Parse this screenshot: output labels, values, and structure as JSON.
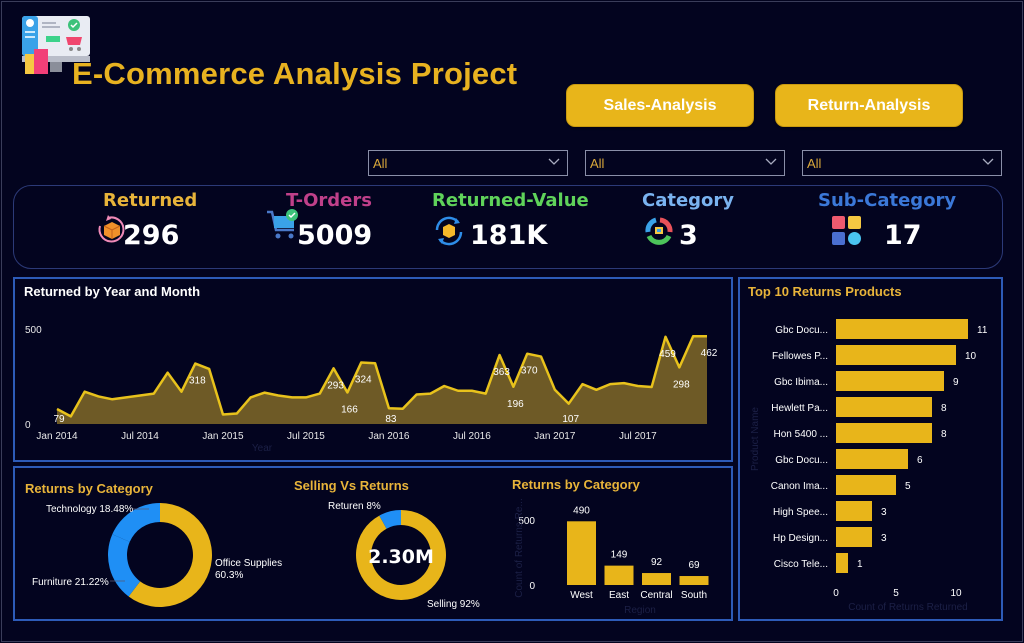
{
  "header": {
    "title": "E-Commerce Analysis Project",
    "logo_icon": "ecommerce-shop-icon"
  },
  "nav": {
    "sales_label": "Sales-Analysis",
    "return_label": "Return-Analysis"
  },
  "slicers": [
    {
      "value": "All",
      "icon": "chevron-down-icon"
    },
    {
      "value": "All",
      "icon": "chevron-down-icon"
    },
    {
      "value": "All",
      "icon": "chevron-down-icon"
    }
  ],
  "kpis": [
    {
      "label": "Returned",
      "value": "296",
      "color": "#e8b43a",
      "icon": "returned-box-icon"
    },
    {
      "label": "T-Orders",
      "value": "5009",
      "color": "#c0408a",
      "icon": "shopping-cart-check-icon"
    },
    {
      "label": "Returned-Value",
      "value": "181K",
      "color": "#5fd35a",
      "icon": "refresh-box-icon"
    },
    {
      "label": "Category",
      "value": "3",
      "color": "#7ab3f0",
      "icon": "category-ring-icon"
    },
    {
      "label": "Sub-Category",
      "value": "17",
      "color": "#3b78d8",
      "icon": "grid-tiles-icon"
    }
  ],
  "colors": {
    "accent": "#e8b51a",
    "panel_border": "#2d5bb8",
    "background": "#03041f",
    "area_fill": "#6e5a26",
    "line": "#e8c21c",
    "blue": "#1f8ff5"
  },
  "chart_data": [
    {
      "id": "returned-by-year-month",
      "type": "area",
      "title": "Returned by Year and Month",
      "xlabel": "Year",
      "ylabel": "",
      "ylim": [
        0,
        500
      ],
      "y_ticks": [
        "0",
        "500"
      ],
      "x_ticks": [
        "Jan 2014",
        "Jul 2014",
        "Jan 2015",
        "Jul 2015",
        "Jan 2016",
        "Jul 2016",
        "Jan 2017",
        "Jul 2017"
      ],
      "x": [
        "2014-01",
        "2014-02",
        "2014-03",
        "2014-04",
        "2014-05",
        "2014-06",
        "2014-07",
        "2014-08",
        "2014-09",
        "2014-10",
        "2014-11",
        "2014-12",
        "2015-01",
        "2015-02",
        "2015-03",
        "2015-04",
        "2015-05",
        "2015-06",
        "2015-07",
        "2015-08",
        "2015-09",
        "2015-10",
        "2015-11",
        "2015-12",
        "2016-01",
        "2016-02",
        "2016-03",
        "2016-04",
        "2016-05",
        "2016-06",
        "2016-07",
        "2016-08",
        "2016-09",
        "2016-10",
        "2016-11",
        "2016-12",
        "2017-01",
        "2017-02",
        "2017-03",
        "2017-04",
        "2017-05",
        "2017-06",
        "2017-07",
        "2017-08",
        "2017-09",
        "2017-10",
        "2017-11",
        "2017-12"
      ],
      "values": [
        79,
        40,
        170,
        145,
        130,
        140,
        150,
        160,
        270,
        170,
        318,
        290,
        50,
        55,
        140,
        165,
        150,
        140,
        140,
        160,
        293,
        166,
        324,
        320,
        83,
        80,
        155,
        160,
        200,
        175,
        175,
        160,
        363,
        196,
        370,
        355,
        180,
        107,
        210,
        180,
        210,
        215,
        200,
        195,
        459,
        298,
        462,
        462
      ],
      "data_labels": [
        {
          "index": 0,
          "text": "79"
        },
        {
          "index": 10,
          "text": "318"
        },
        {
          "index": 20,
          "text": "293"
        },
        {
          "index": 21,
          "text": "166"
        },
        {
          "index": 22,
          "text": "324"
        },
        {
          "index": 24,
          "text": "83"
        },
        {
          "index": 32,
          "text": "363"
        },
        {
          "index": 33,
          "text": "196"
        },
        {
          "index": 34,
          "text": "370"
        },
        {
          "index": 37,
          "text": "107"
        },
        {
          "index": 44,
          "text": "459"
        },
        {
          "index": 45,
          "text": "298"
        },
        {
          "index": 47,
          "text": "462"
        }
      ]
    },
    {
      "id": "top-10-returns-products",
      "type": "bar",
      "orientation": "horizontal",
      "title": "Top 10 Returns Products",
      "xlabel": "Count of Returns Returned",
      "ylabel": "Product Name",
      "xlim": [
        0,
        12
      ],
      "x_ticks": [
        "0",
        "5",
        "10"
      ],
      "categories": [
        "Gbc Docu...",
        "Fellowes P...",
        "Gbc Ibima...",
        "Hewlett Pa...",
        "Hon 5400 ...",
        "Gbc Docu...",
        "Canon Ima...",
        "High Spee...",
        "Hp Design...",
        "Cisco Tele..."
      ],
      "values": [
        11,
        10,
        9,
        8,
        8,
        6,
        5,
        3,
        3,
        1
      ]
    },
    {
      "id": "returns-by-category-donut",
      "type": "pie",
      "donut": true,
      "title": "Returns by Category",
      "slices": [
        {
          "label": "Office Supplies",
          "value": 60.3,
          "label_text": "Office Supplies 60.3%",
          "color": "#e8b51a"
        },
        {
          "label": "Furniture",
          "value": 21.22,
          "label_text": "Furniture 21.22%",
          "color": "#1f8ff5"
        },
        {
          "label": "Technology",
          "value": 18.48,
          "label_text": "Technology 18.48%",
          "color": "#1f8ff5"
        }
      ]
    },
    {
      "id": "selling-vs-returns",
      "type": "pie",
      "donut": true,
      "title": "Selling Vs Returns",
      "center_label": "2.30M",
      "slices": [
        {
          "label": "Selling",
          "value": 92,
          "label_text": "Selling 92%",
          "color": "#e8b51a"
        },
        {
          "label": "Returen",
          "value": 8,
          "label_text": "Returen 8%",
          "color": "#1f8ff5"
        }
      ]
    },
    {
      "id": "returns-by-region",
      "type": "bar",
      "title": "Returns by Category",
      "xlabel": "Region",
      "ylabel": "Count of Returns Re...",
      "ylim": [
        0,
        500
      ],
      "y_ticks": [
        "0",
        "500"
      ],
      "categories": [
        "West",
        "East",
        "Central",
        "South"
      ],
      "values": [
        490,
        149,
        92,
        69
      ]
    }
  ]
}
